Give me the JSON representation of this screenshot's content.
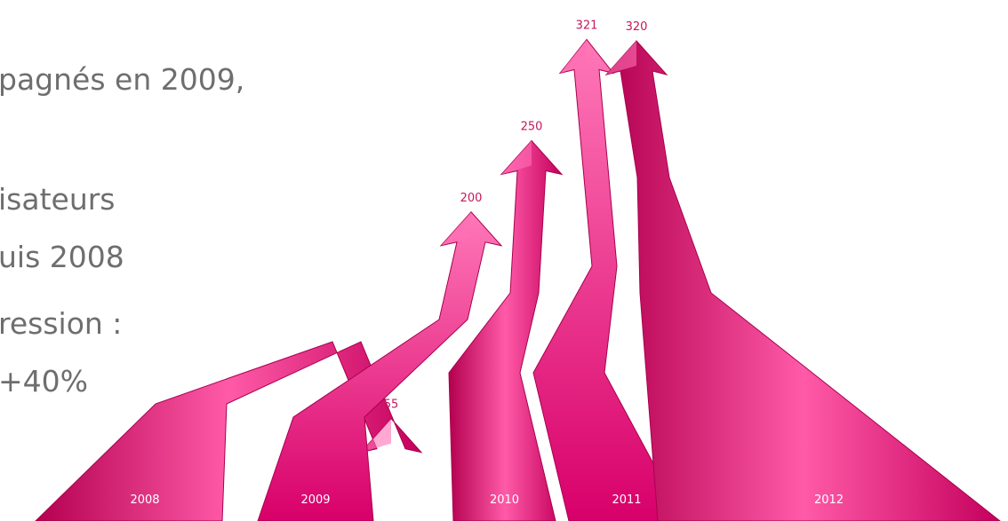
{
  "text_lines": [
    "pagnés en 2009,",
    "isateurs",
    "uis 2008",
    "ression :",
    "+40%"
  ],
  "chart_data": {
    "type": "bar",
    "categories": [
      "2008",
      "2009",
      "2010",
      "2011",
      "2012"
    ],
    "values": [
      55,
      200,
      250,
      321,
      320
    ],
    "title": "",
    "xlabel": "",
    "ylabel": "",
    "ylim": [
      0,
      330
    ],
    "grid": false,
    "legend": "none",
    "colors": {
      "arrow": "#e8117a",
      "arrow_light": "#ff6fb4",
      "arrow_dark": "#a8004e",
      "label": "#c2185b"
    }
  }
}
